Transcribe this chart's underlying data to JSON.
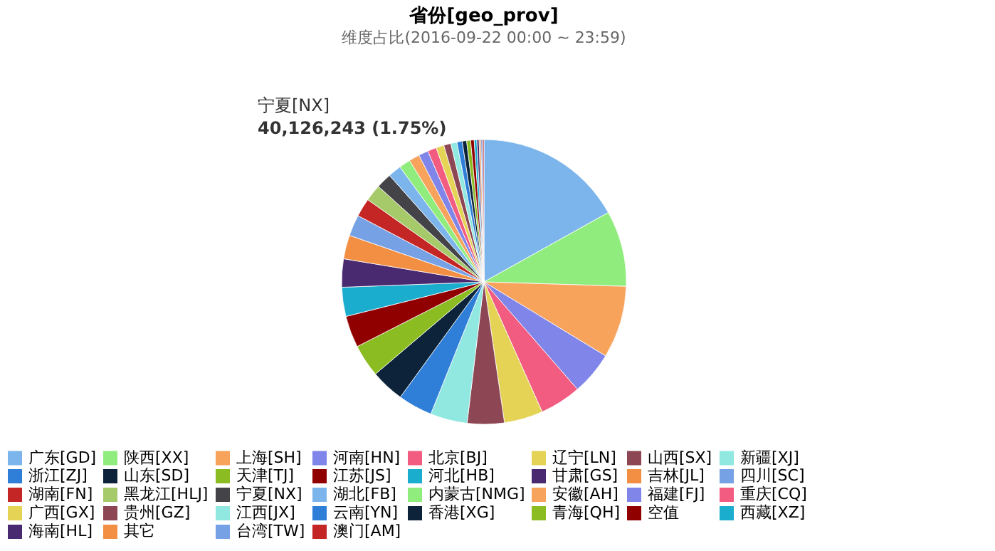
{
  "chart_data": {
    "type": "pie",
    "title": "省份[geo_prov]",
    "subtitle": "维度占比(2016-09-22 00:00 ~ 23:59)",
    "categories": [
      "广东[GD]",
      "陕西[XX]",
      "上海[SH]",
      "河南[HN]",
      "北京[BJ]",
      "辽宁[LN]",
      "山西[SX]",
      "新疆[XJ]",
      "浙江[ZJ]",
      "山东[SD]",
      "天津[TJ]",
      "江苏[JS]",
      "河北[HB]",
      "甘肃[GS]",
      "吉林[JL]",
      "四川[SC]",
      "湖南[FN]",
      "黑龙江[HLJ]",
      "宁夏[NX]",
      "湖北[FB]",
      "内蒙古[NMG]",
      "安徽[AH]",
      "福建[FJ]",
      "重庆[CQ]",
      "广西[GX]",
      "贵州[GZ]",
      "江西[JX]",
      "云南[YN]",
      "香港[XG]",
      "青海[QH]",
      "空值",
      "西藏[XZ]",
      "海南[HL]",
      "其它",
      "台湾[TW]",
      "澳门[AM]"
    ],
    "values": [
      16.9,
      8.6,
      8.2,
      4.9,
      4.7,
      4.4,
      4.2,
      4.2,
      3.9,
      3.8,
      3.7,
      3.6,
      3.3,
      3.2,
      2.7,
      2.4,
      2.1,
      1.9,
      1.75,
      1.5,
      1.3,
      1.2,
      1.1,
      1.0,
      0.9,
      0.8,
      0.7,
      0.6,
      0.5,
      0.45,
      0.4,
      0.3,
      0.25,
      0.2,
      0.2,
      0.15
    ],
    "colors": [
      "#7cb5ec",
      "#90ed7d",
      "#f7a35c",
      "#8085e9",
      "#f15c80",
      "#e4d354",
      "#8d4653",
      "#91e8e1",
      "#2f7ed8",
      "#0d233a",
      "#8bbc21",
      "#910000",
      "#1aadce",
      "#492970",
      "#f28f43",
      "#77a1e5",
      "#c42525",
      "#a6c96a",
      "#434348",
      "#7cb5ec",
      "#90ed7d",
      "#f7a35c",
      "#8085e9",
      "#f15c80",
      "#e4d354",
      "#8d4653",
      "#91e8e1",
      "#2f7ed8",
      "#0d233a",
      "#8bbc21",
      "#910000",
      "#1aadce",
      "#492970",
      "#f28f43",
      "#77a1e5",
      "#c42525"
    ],
    "legend": "bottom",
    "annotations": [
      "宁夏[NX]",
      "40,126,243 (1.75%)"
    ]
  }
}
